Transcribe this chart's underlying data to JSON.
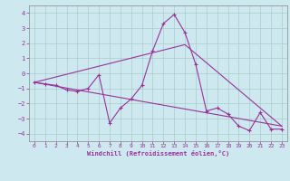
{
  "xlabel": "Windchill (Refroidissement éolien,°C)",
  "bg_color": "#cde8ee",
  "line_color": "#993399",
  "xlim": [
    -0.5,
    23.5
  ],
  "ylim": [
    -4.5,
    4.5
  ],
  "yticks": [
    -4,
    -3,
    -2,
    -1,
    0,
    1,
    2,
    3,
    4
  ],
  "xticks": [
    0,
    1,
    2,
    3,
    4,
    5,
    6,
    7,
    8,
    9,
    10,
    11,
    12,
    13,
    14,
    15,
    16,
    17,
    18,
    19,
    20,
    21,
    22,
    23
  ],
  "series1_x": [
    0,
    1,
    2,
    3,
    4,
    5,
    6,
    7,
    8,
    9,
    10,
    11,
    12,
    13,
    14,
    15,
    16,
    17,
    18,
    19,
    20,
    21,
    22,
    23
  ],
  "series1_y": [
    -0.6,
    -0.7,
    -0.8,
    -1.1,
    -1.2,
    -1.0,
    -0.1,
    -3.3,
    -2.3,
    -1.7,
    -0.8,
    1.5,
    3.3,
    3.9,
    2.7,
    0.6,
    -2.5,
    -2.3,
    -2.7,
    -3.5,
    -3.8,
    -2.6,
    -3.7,
    -3.7
  ],
  "series2_x": [
    0,
    23
  ],
  "series2_y": [
    -0.6,
    -3.5
  ],
  "series3_x": [
    0,
    14,
    23
  ],
  "series3_y": [
    -0.6,
    1.9,
    -3.5
  ],
  "grid_color": "#aacccc",
  "spine_color": "#888888"
}
